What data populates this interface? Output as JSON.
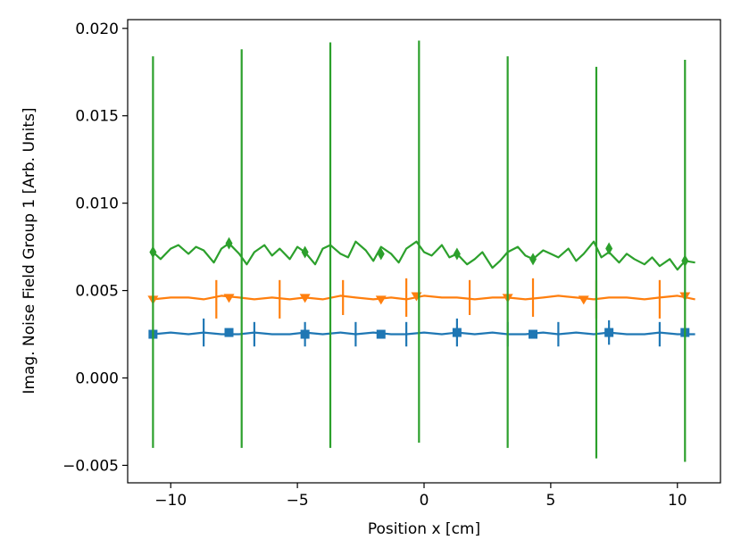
{
  "chart_data": {
    "type": "line",
    "title": "",
    "xlabel": "Position x [cm]",
    "ylabel": "Imag. Noise Field Group 1 [Arb. Units]",
    "xlim": [
      -11.7,
      11.7
    ],
    "ylim": [
      -0.006,
      0.0205
    ],
    "xticks": [
      -10,
      -5,
      0,
      5,
      10
    ],
    "xtick_labels": [
      "−10",
      "−5",
      "0",
      "5",
      "10"
    ],
    "yticks": [
      -0.005,
      0.0,
      0.005,
      0.01,
      0.015,
      0.02
    ],
    "ytick_labels": [
      "−0.005",
      "0.000",
      "0.005",
      "0.010",
      "0.015",
      "0.020"
    ],
    "grid": false,
    "legend": "none",
    "series": [
      {
        "color": "#1f77b4",
        "marker": "square",
        "x": [
          -10.7,
          -10.0,
          -9.3,
          -8.7,
          -8.0,
          -7.3,
          -6.7,
          -6.0,
          -5.3,
          -4.7,
          -4.0,
          -3.3,
          -2.7,
          -2.0,
          -1.3,
          -0.7,
          0.0,
          0.7,
          1.3,
          2.0,
          2.7,
          3.3,
          4.0,
          4.7,
          5.3,
          6.0,
          6.7,
          7.3,
          8.0,
          8.7,
          9.3,
          10.0,
          10.7
        ],
        "y": [
          0.0025,
          0.0026,
          0.0025,
          0.0026,
          0.0025,
          0.0025,
          0.0026,
          0.0025,
          0.0025,
          0.0026,
          0.0025,
          0.0026,
          0.0025,
          0.0026,
          0.0025,
          0.0025,
          0.0026,
          0.0025,
          0.0026,
          0.0025,
          0.0026,
          0.0025,
          0.0025,
          0.0026,
          0.0025,
          0.0026,
          0.0025,
          0.0026,
          0.0025,
          0.0025,
          0.0026,
          0.0025,
          0.0025
        ],
        "marker_x": [
          -10.7,
          -7.7,
          -4.7,
          -1.7,
          1.3,
          4.3,
          7.3,
          10.3
        ],
        "marker_y": [
          0.0025,
          0.0026,
          0.0025,
          0.0025,
          0.0026,
          0.0025,
          0.0026,
          0.0026
        ],
        "errorbars": [
          {
            "x": -8.7,
            "y": 0.0026,
            "err": 0.0008
          },
          {
            "x": -6.7,
            "y": 0.0025,
            "err": 0.0007
          },
          {
            "x": -4.7,
            "y": 0.0025,
            "err": 0.0007
          },
          {
            "x": -2.7,
            "y": 0.0025,
            "err": 0.0007
          },
          {
            "x": -0.7,
            "y": 0.0025,
            "err": 0.0007
          },
          {
            "x": 1.3,
            "y": 0.0026,
            "err": 0.0008
          },
          {
            "x": 3.3,
            "y": 0.0025,
            "err": 0.0007
          },
          {
            "x": 5.3,
            "y": 0.0025,
            "err": 0.0007
          },
          {
            "x": 7.3,
            "y": 0.0026,
            "err": 0.0007
          },
          {
            "x": 9.3,
            "y": 0.0025,
            "err": 0.0007
          }
        ]
      },
      {
        "color": "#ff7f0e",
        "marker": "triangle_down",
        "x": [
          -10.7,
          -10.0,
          -9.3,
          -8.7,
          -8.0,
          -7.3,
          -6.7,
          -6.0,
          -5.3,
          -4.7,
          -4.0,
          -3.3,
          -2.7,
          -2.0,
          -1.3,
          -0.7,
          0.0,
          0.7,
          1.3,
          2.0,
          2.7,
          3.3,
          4.0,
          4.7,
          5.3,
          6.0,
          6.7,
          7.3,
          8.0,
          8.7,
          9.3,
          10.0,
          10.7
        ],
        "y": [
          0.0045,
          0.0046,
          0.0046,
          0.0045,
          0.0047,
          0.0046,
          0.0045,
          0.0046,
          0.0045,
          0.0046,
          0.0045,
          0.0047,
          0.0046,
          0.0045,
          0.0046,
          0.0045,
          0.0047,
          0.0046,
          0.0046,
          0.0045,
          0.0046,
          0.0046,
          0.0045,
          0.0046,
          0.0047,
          0.0046,
          0.0045,
          0.0046,
          0.0046,
          0.0045,
          0.0046,
          0.0047,
          0.0045
        ],
        "marker_x": [
          -10.7,
          -7.7,
          -4.7,
          -1.7,
          -0.3,
          3.3,
          6.3,
          10.3
        ],
        "marker_y": [
          0.0045,
          0.0046,
          0.0046,
          0.0045,
          0.0047,
          0.0046,
          0.0045,
          0.0047
        ],
        "errorbars": [
          {
            "x": -8.2,
            "y": 0.0045,
            "err": 0.0011
          },
          {
            "x": -5.7,
            "y": 0.0045,
            "err": 0.0011
          },
          {
            "x": -3.2,
            "y": 0.0046,
            "err": 0.001
          },
          {
            "x": -0.7,
            "y": 0.0046,
            "err": 0.0011
          },
          {
            "x": 1.8,
            "y": 0.0046,
            "err": 0.001
          },
          {
            "x": 4.3,
            "y": 0.0046,
            "err": 0.0011
          },
          {
            "x": 6.8,
            "y": 0.0045,
            "err": 0.0011
          },
          {
            "x": 9.3,
            "y": 0.0045,
            "err": 0.0011
          }
        ]
      },
      {
        "color": "#2ca02c",
        "marker": "thin_diamond",
        "x": [
          -10.7,
          -10.4,
          -10.0,
          -9.7,
          -9.3,
          -9.0,
          -8.7,
          -8.3,
          -8.0,
          -7.7,
          -7.3,
          -7.0,
          -6.7,
          -6.3,
          -6.0,
          -5.7,
          -5.3,
          -5.0,
          -4.7,
          -4.3,
          -4.0,
          -3.7,
          -3.3,
          -3.0,
          -2.7,
          -2.3,
          -2.0,
          -1.7,
          -1.3,
          -1.0,
          -0.7,
          -0.3,
          0.0,
          0.3,
          0.7,
          1.0,
          1.3,
          1.7,
          2.0,
          2.3,
          2.7,
          3.0,
          3.3,
          3.7,
          4.0,
          4.3,
          4.7,
          5.0,
          5.3,
          5.7,
          6.0,
          6.3,
          6.7,
          7.0,
          7.3,
          7.7,
          8.0,
          8.3,
          8.7,
          9.0,
          9.3,
          9.7,
          10.0,
          10.3,
          10.7
        ],
        "y": [
          0.0072,
          0.0068,
          0.0074,
          0.0076,
          0.0071,
          0.0075,
          0.0073,
          0.0066,
          0.0074,
          0.0077,
          0.0071,
          0.0065,
          0.0072,
          0.0076,
          0.007,
          0.0074,
          0.0068,
          0.0075,
          0.0072,
          0.0065,
          0.0074,
          0.0076,
          0.0071,
          0.0069,
          0.0078,
          0.0073,
          0.0067,
          0.0075,
          0.0071,
          0.0066,
          0.0074,
          0.0078,
          0.0072,
          0.007,
          0.0076,
          0.0069,
          0.0071,
          0.0065,
          0.0068,
          0.0072,
          0.0063,
          0.0067,
          0.0072,
          0.0075,
          0.007,
          0.0068,
          0.0073,
          0.0071,
          0.0069,
          0.0074,
          0.0067,
          0.0071,
          0.0078,
          0.0069,
          0.0072,
          0.0066,
          0.0071,
          0.0068,
          0.0065,
          0.0069,
          0.0064,
          0.0068,
          0.0062,
          0.0067,
          0.0066
        ],
        "marker_x": [
          -10.7,
          -7.7,
          -4.7,
          -1.7,
          1.3,
          4.3,
          7.3,
          10.3
        ],
        "marker_y": [
          0.0072,
          0.0077,
          0.0072,
          0.0071,
          0.0071,
          0.0068,
          0.0074,
          0.0067
        ],
        "errorbars": [
          {
            "x": -10.7,
            "y": 0.0072,
            "err": 0.0112
          },
          {
            "x": -7.2,
            "y": 0.0074,
            "err": 0.0114
          },
          {
            "x": -3.7,
            "y": 0.0076,
            "err": 0.0116
          },
          {
            "x": -0.2,
            "y": 0.0078,
            "err": 0.0115
          },
          {
            "x": 3.3,
            "y": 0.0072,
            "err": 0.0112
          },
          {
            "x": 6.8,
            "y": 0.0066,
            "err": 0.0112
          },
          {
            "x": 10.3,
            "y": 0.0067,
            "err": 0.0115
          }
        ]
      }
    ]
  }
}
